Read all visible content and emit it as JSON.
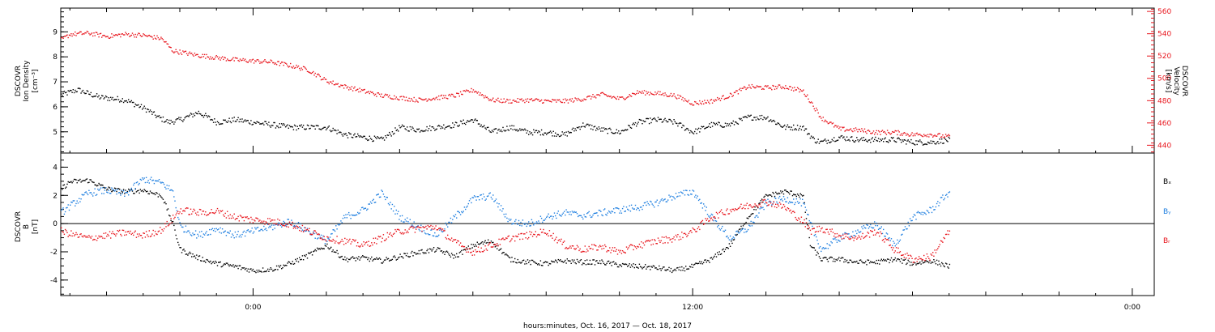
{
  "chart_data": [
    {
      "type": "scatter",
      "panel": "plasma",
      "ylabel": [
        "DSCOVR",
        "Ion Density",
        "[cm⁻³]"
      ],
      "y2label": [
        "DSCOVR",
        "Velocity",
        "[km/s]"
      ],
      "ylim": [
        4.15,
        9.95
      ],
      "y2lim": [
        433,
        563
      ],
      "yticks": [
        5,
        6,
        7,
        8,
        9
      ],
      "y2ticks": [
        440,
        460,
        480,
        500,
        520,
        540,
        560
      ],
      "grid": false,
      "series": [
        {
          "color": "#000000",
          "axis": "left",
          "x": [
            -5.25,
            -4.8,
            -4.2,
            -3.5,
            -2.9,
            -2.6,
            -2.3,
            -2.0,
            -1.5,
            -1.0,
            -0.5,
            0.0,
            0.5,
            1.0,
            1.5,
            2.0,
            2.5,
            3.0,
            3.5,
            4.0,
            4.5,
            5.0,
            5.5,
            6.0,
            6.5,
            7.0,
            7.5,
            8.0,
            8.5,
            9.0,
            9.5,
            10.0,
            10.5,
            11.0,
            11.5,
            12.0,
            12.5,
            13.0,
            13.5,
            14.0,
            14.5,
            15.0,
            15.3,
            15.5,
            16.0,
            16.5,
            17.0,
            17.5,
            18.0,
            18.5,
            19.0
          ],
          "y": [
            6.5,
            6.7,
            6.4,
            6.3,
            5.9,
            5.6,
            5.4,
            5.5,
            5.8,
            5.4,
            5.5,
            5.4,
            5.3,
            5.2,
            5.2,
            5.2,
            4.9,
            4.8,
            4.7,
            5.2,
            5.1,
            5.2,
            5.3,
            5.5,
            5.0,
            5.2,
            5.0,
            5.0,
            4.9,
            5.3,
            5.1,
            5.0,
            5.4,
            5.5,
            5.4,
            5.0,
            5.3,
            5.3,
            5.6,
            5.6,
            5.2,
            5.2,
            4.7,
            4.6,
            4.8,
            4.7,
            4.7,
            4.7,
            4.6,
            4.6,
            4.7
          ]
        },
        {
          "color": "#e8141c",
          "axis": "right",
          "x": [
            -5.25,
            -5.0,
            -4.5,
            -4.0,
            -3.5,
            -3.0,
            -2.5,
            -2.2,
            -2.0,
            -1.5,
            -1.0,
            -0.5,
            0.0,
            0.5,
            1.0,
            1.5,
            2.0,
            2.5,
            3.0,
            3.5,
            4.0,
            4.5,
            5.0,
            5.5,
            6.0,
            6.5,
            7.0,
            7.5,
            8.0,
            8.5,
            9.0,
            9.5,
            10.0,
            10.5,
            11.0,
            11.5,
            12.0,
            12.5,
            13.0,
            13.5,
            14.0,
            14.5,
            15.0,
            15.2,
            15.5,
            16.0,
            16.5,
            17.0,
            17.5,
            18.0,
            18.5,
            19.0
          ],
          "y": [
            535,
            540,
            541,
            538,
            540,
            539,
            536,
            525,
            524,
            521,
            519,
            517,
            516,
            515,
            512,
            508,
            498,
            493,
            489,
            485,
            483,
            481,
            483,
            485,
            490,
            481,
            480,
            481,
            480,
            480,
            482,
            486,
            482,
            488,
            487,
            485,
            478,
            480,
            485,
            493,
            492,
            493,
            489,
            480,
            465,
            455,
            454,
            452,
            452,
            450,
            450,
            448
          ]
        }
      ]
    },
    {
      "type": "scatter",
      "panel": "magnetic field",
      "ylabel": [
        "DSCOVR",
        "B",
        "[nT]"
      ],
      "ylim": [
        -5.1,
        5.0
      ],
      "yticks": [
        -4,
        -2,
        0,
        2,
        4
      ],
      "zero_line": true,
      "grid": false,
      "legend_placement": "right",
      "series": [
        {
          "name": "Bₓ",
          "color": "#000000",
          "x": [
            -5.25,
            -5.0,
            -4.5,
            -4.0,
            -3.5,
            -3.0,
            -2.5,
            -2.2,
            -2.0,
            -1.5,
            -1.0,
            -0.5,
            0.0,
            0.5,
            1.0,
            1.5,
            2.0,
            2.5,
            3.0,
            3.5,
            4.0,
            4.5,
            5.0,
            5.5,
            6.0,
            6.5,
            7.0,
            7.5,
            8.0,
            8.5,
            9.0,
            9.5,
            10.0,
            10.5,
            11.0,
            11.5,
            12.0,
            12.5,
            13.0,
            13.5,
            14.0,
            14.5,
            15.0,
            15.2,
            15.5,
            16.0,
            16.5,
            17.0,
            17.5,
            18.0,
            18.5,
            19.0
          ],
          "y": [
            2.5,
            3.0,
            3.1,
            2.5,
            2.3,
            2.4,
            2.0,
            0.0,
            -1.8,
            -2.4,
            -2.8,
            -3.0,
            -3.3,
            -3.2,
            -2.8,
            -2.2,
            -1.5,
            -2.5,
            -2.4,
            -2.6,
            -2.3,
            -2.0,
            -1.8,
            -2.3,
            -1.5,
            -1.2,
            -2.5,
            -2.7,
            -2.8,
            -2.6,
            -2.7,
            -2.7,
            -2.9,
            -3.0,
            -3.1,
            -3.3,
            -3.0,
            -2.5,
            -1.5,
            0.5,
            2.0,
            2.3,
            2.0,
            -1.5,
            -2.5,
            -2.5,
            -2.7,
            -2.7,
            -2.5,
            -2.8,
            -2.6,
            -3.0
          ]
        },
        {
          "name": "Bᵧ",
          "color": "#1f7fe0",
          "x": [
            -5.25,
            -5.0,
            -4.5,
            -4.0,
            -3.5,
            -3.0,
            -2.5,
            -2.2,
            -2.0,
            -1.5,
            -1.0,
            -0.5,
            0.0,
            0.5,
            1.0,
            1.5,
            2.0,
            2.5,
            3.0,
            3.5,
            4.0,
            4.5,
            5.0,
            5.5,
            6.0,
            6.5,
            7.0,
            7.5,
            8.0,
            8.5,
            9.0,
            9.5,
            10.0,
            10.5,
            11.0,
            11.5,
            12.0,
            12.5,
            13.0,
            13.5,
            14.0,
            14.5,
            15.0,
            15.2,
            15.5,
            16.0,
            16.5,
            17.0,
            17.5,
            18.0,
            18.5,
            19.0
          ],
          "y": [
            0.8,
            1.3,
            2.2,
            2.4,
            2.1,
            3.2,
            2.9,
            2.3,
            -0.2,
            -0.8,
            -0.3,
            -0.8,
            -0.5,
            -0.2,
            0.2,
            -0.5,
            -1.2,
            0.5,
            1.0,
            2.2,
            0.5,
            -0.2,
            -0.8,
            0.5,
            1.8,
            2.0,
            0.2,
            0.0,
            0.5,
            0.8,
            0.6,
            0.8,
            1.0,
            1.2,
            1.5,
            2.0,
            2.3,
            0.5,
            -1.0,
            -0.3,
            1.5,
            1.8,
            1.5,
            0.0,
            -1.8,
            -1.0,
            -0.5,
            0.0,
            -1.5,
            0.5,
            1.0,
            2.3
          ]
        },
        {
          "name": "Bᵣ",
          "color": "#e8141c",
          "x": [
            -5.25,
            -5.0,
            -4.5,
            -4.0,
            -3.5,
            -3.0,
            -2.5,
            -2.2,
            -2.0,
            -1.5,
            -1.0,
            -0.5,
            0.0,
            0.5,
            1.0,
            1.5,
            2.0,
            2.5,
            3.0,
            3.5,
            4.0,
            4.5,
            5.0,
            5.5,
            6.0,
            6.5,
            7.0,
            7.5,
            8.0,
            8.5,
            9.0,
            9.5,
            10.0,
            10.5,
            11.0,
            11.5,
            12.0,
            12.5,
            13.0,
            13.5,
            14.0,
            14.5,
            15.0,
            15.2,
            15.5,
            16.0,
            16.5,
            17.0,
            17.5,
            18.0,
            18.5,
            19.0
          ],
          "y": [
            -0.5,
            -0.7,
            -1.0,
            -0.8,
            -0.6,
            -0.8,
            -0.4,
            0.4,
            1.0,
            0.8,
            0.9,
            0.5,
            0.3,
            0.2,
            0.0,
            -0.5,
            -1.0,
            -1.2,
            -1.5,
            -1.0,
            -0.5,
            -0.3,
            -0.2,
            -1.3,
            -2.0,
            -1.5,
            -1.0,
            -0.8,
            -0.5,
            -1.5,
            -1.8,
            -1.6,
            -2.0,
            -1.5,
            -1.2,
            -1.0,
            -0.5,
            0.5,
            1.0,
            1.3,
            1.6,
            1.2,
            0.2,
            -0.5,
            -0.3,
            -0.8,
            -1.0,
            -0.5,
            -1.8,
            -2.5,
            -2.3,
            -0.5
          ]
        }
      ]
    }
  ],
  "x_axis": {
    "xlabel": "hours:minutes, Oct. 16, 2017 — Oct. 18, 2017",
    "xlim": [
      -5.25,
      24.6
    ],
    "ticks": [
      {
        "value": 0,
        "label": "0:00"
      },
      {
        "value": 12,
        "label": "12:00"
      },
      {
        "value": 24,
        "label": "0:00"
      }
    ]
  }
}
